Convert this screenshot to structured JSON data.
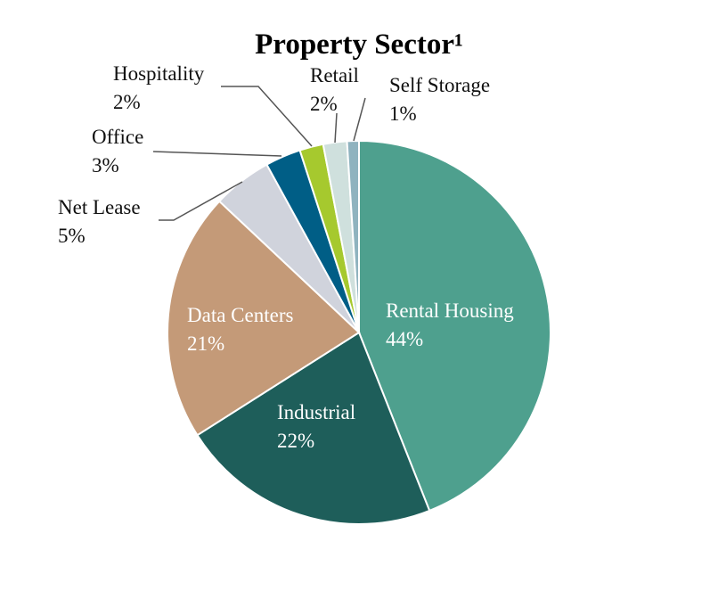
{
  "chart_data": {
    "type": "pie",
    "title": "Property Sector¹",
    "categories": [
      "Rental Housing",
      "Industrial",
      "Data Centers",
      "Net Lease",
      "Office",
      "Hospitality",
      "Retail",
      "Self Storage"
    ],
    "values": [
      44,
      22,
      21,
      5,
      3,
      2,
      2,
      1
    ],
    "value_labels": [
      "44%",
      "22%",
      "21%",
      "5%",
      "3%",
      "2%",
      "2%",
      "1%"
    ],
    "colors": [
      "#4ea08e",
      "#1e5e5a",
      "#c49a78",
      "#d0d3dc",
      "#005e86",
      "#a6c92e",
      "#cfe0dd",
      "#8fb3bf"
    ]
  }
}
